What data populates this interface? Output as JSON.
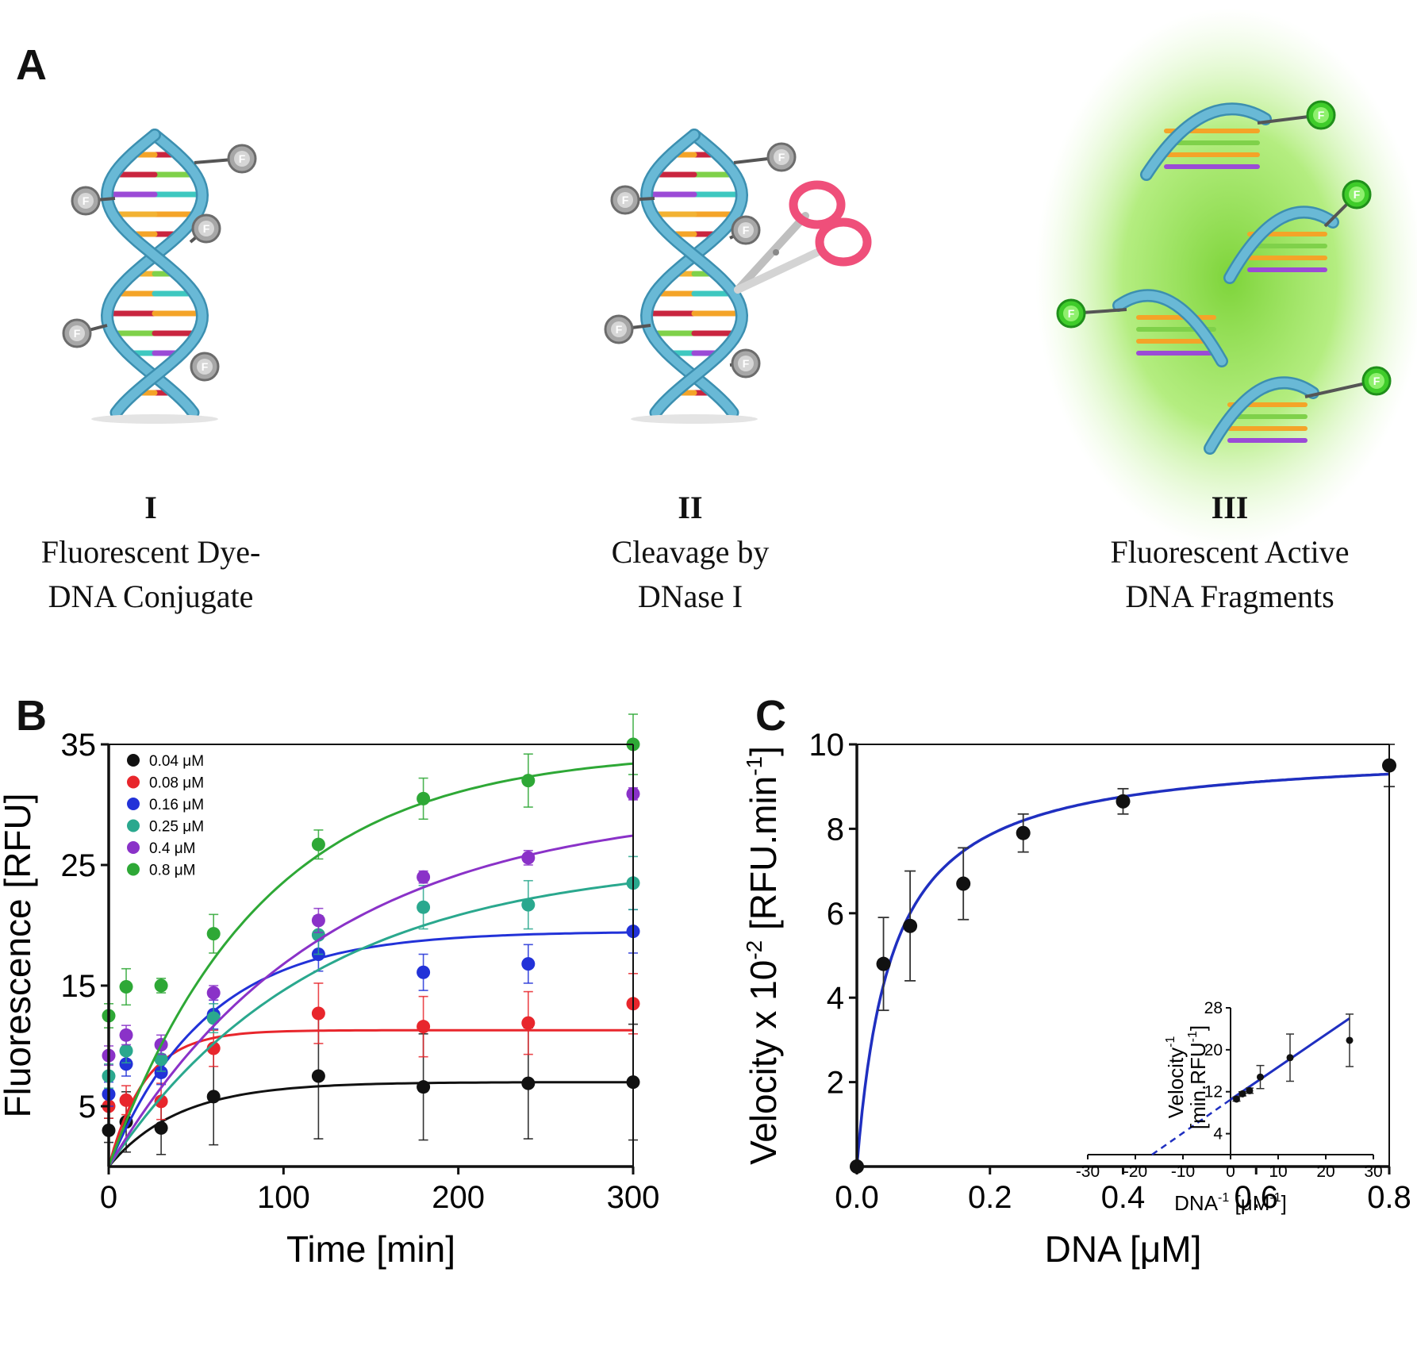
{
  "panel_a": {
    "letter": "A",
    "steps": [
      {
        "roman": "I",
        "lines": [
          "Fluorescent Dye-",
          "DNA Conjugate"
        ]
      },
      {
        "roman": "II",
        "lines": [
          "Cleavage by",
          "DNase I"
        ]
      },
      {
        "roman": "III",
        "lines": [
          "Fluorescent Active",
          "DNA Fragments"
        ]
      }
    ],
    "dye_label": "F",
    "colors": {
      "backbone": "#69b9d6",
      "dye_off": "#a7a7a7",
      "dye_on": "#3fcc2a",
      "glow": "#9be85a",
      "scissors": "#ef4f7a"
    }
  },
  "panel_b": {
    "letter": "B"
  },
  "panel_c": {
    "letter": "C"
  },
  "chart_data": [
    {
      "type": "scatter",
      "panel": "B",
      "xlabel": "Time [min]",
      "ylabel": "Fluorescence [RFU]",
      "xlim": [
        0,
        300
      ],
      "ylim": [
        0,
        35
      ],
      "xticks": [
        0,
        100,
        200,
        300
      ],
      "yticks": [
        5,
        15,
        25,
        35
      ],
      "legend_position": "top-left",
      "x": [
        0,
        10,
        30,
        60,
        120,
        180,
        240,
        300
      ],
      "series": [
        {
          "name": "0.04 μM",
          "color": "#111111",
          "values": [
            3.0,
            3.7,
            3.2,
            5.8,
            7.5,
            6.6,
            6.9,
            7.0
          ],
          "errors": [
            1.0,
            2.5,
            2.2,
            4.0,
            5.2,
            4.4,
            4.6,
            4.8
          ],
          "fit": {
            "ymax": 7.0,
            "k": 0.025
          }
        },
        {
          "name": "0.08 μM",
          "color": "#e8262c",
          "values": [
            5.0,
            5.5,
            5.4,
            9.8,
            12.7,
            11.6,
            11.9,
            13.5
          ],
          "errors": [
            1.0,
            1.2,
            1.5,
            1.5,
            2.5,
            2.5,
            2.6,
            2.5
          ],
          "fit": {
            "ymax": 11.3,
            "k": 0.048
          }
        },
        {
          "name": "0.16 μM",
          "color": "#2232d8",
          "values": [
            6.0,
            8.5,
            7.8,
            12.6,
            17.6,
            16.1,
            16.8,
            19.5
          ],
          "errors": [
            1.0,
            1.0,
            1.0,
            1.2,
            1.4,
            1.5,
            1.6,
            1.8
          ],
          "fit": {
            "ymax": 19.5,
            "k": 0.018
          }
        },
        {
          "name": "0.25 μM",
          "color": "#2aa88e",
          "values": [
            7.5,
            9.6,
            8.9,
            12.3,
            19.2,
            21.5,
            21.7,
            23.5
          ],
          "errors": [
            1.0,
            1.0,
            1.0,
            1.2,
            1.6,
            1.8,
            2.0,
            2.2
          ],
          "fit": {
            "ymax": 25.5,
            "k": 0.0085
          }
        },
        {
          "name": "0.4  μM",
          "color": "#8a32c8",
          "values": [
            9.2,
            10.9,
            10.1,
            14.4,
            20.4,
            24.0,
            25.6,
            30.9
          ],
          "errors": [
            0.8,
            0.8,
            0.8,
            0.6,
            1.0,
            0.5,
            0.6,
            0.5
          ],
          "fit": {
            "ymax": 30.0,
            "k": 0.0082
          }
        },
        {
          "name": "0.8  μM",
          "color": "#2ea836",
          "values": [
            12.5,
            14.9,
            15.0,
            19.3,
            26.7,
            30.5,
            32.0,
            35.0
          ],
          "errors": [
            1.0,
            1.5,
            0.6,
            1.6,
            1.2,
            1.7,
            2.2,
            2.5
          ],
          "fit": {
            "ymax": 34.5,
            "k": 0.0115
          }
        }
      ]
    },
    {
      "type": "scatter",
      "panel": "C",
      "xlabel": "DNA [μM]",
      "ylabel": "Velocity x 10-2 [RFU.min-1]",
      "ylabel_parts": {
        "base": "Velocity x 10",
        "exp1": "-2",
        "mid": " [RFU.min",
        "exp2": "-1",
        "end": "]"
      },
      "xlim": [
        0,
        0.8
      ],
      "ylim": [
        0,
        10
      ],
      "xticks": [
        0.0,
        0.2,
        0.4,
        0.6,
        0.8
      ],
      "xtick_labels": [
        "0.0",
        "0.2",
        "0.4",
        "0.6",
        "0.8"
      ],
      "yticks": [
        2,
        4,
        6,
        8,
        10
      ],
      "color": "#1f2fc0",
      "points": [
        {
          "x": 0.0,
          "y": 0.0,
          "err": 0
        },
        {
          "x": 0.04,
          "y": 4.8,
          "err": 1.1
        },
        {
          "x": 0.08,
          "y": 5.7,
          "err": 1.3
        },
        {
          "x": 0.16,
          "y": 6.7,
          "err": 0.85
        },
        {
          "x": 0.25,
          "y": 7.9,
          "err": 0.45
        },
        {
          "x": 0.4,
          "y": 8.65,
          "err": 0.3
        },
        {
          "x": 0.8,
          "y": 9.5,
          "err": 0.5
        }
      ],
      "fit": {
        "vmax": 9.9,
        "km": 0.052
      },
      "inset": {
        "type": "line",
        "xlabel": "DNA-1 [μM-1]",
        "xlabel_parts": {
          "base": "DNA",
          "exp1": "-1",
          "mid": " [μM",
          "exp2": "-1",
          "end": "]"
        },
        "ylabel_line1": "Velocity-1",
        "ylabel_line1_parts": {
          "base": "Velocity",
          "exp": "-1"
        },
        "ylabel_line2": "[min.RFU-1]",
        "ylabel_line2_parts": {
          "base": "[min.RFU",
          "exp": "-1",
          "end": "]"
        },
        "xlim": [
          -30,
          30
        ],
        "ylim": [
          0,
          28
        ],
        "xticks": [
          -30,
          -20,
          -10,
          0,
          10,
          20,
          30
        ],
        "yticks": [
          4,
          12,
          20,
          28
        ],
        "points": [
          {
            "x": 1.25,
            "y": 10.6,
            "err": 0.4
          },
          {
            "x": 2.5,
            "y": 11.6,
            "err": 0.4
          },
          {
            "x": 4.0,
            "y": 12.2,
            "err": 0.5
          },
          {
            "x": 6.25,
            "y": 14.8,
            "err": 2.2
          },
          {
            "x": 12.5,
            "y": 18.5,
            "err": 4.5
          },
          {
            "x": 25.0,
            "y": 21.8,
            "err": 5.0
          }
        ],
        "fit_line": {
          "x0": 0,
          "y0": 10.5,
          "x1": 25,
          "y1": 26.0
        },
        "extrapolation": {
          "x0": -16.5,
          "y0": 0,
          "x1": 0,
          "y1": 10.5
        }
      }
    }
  ]
}
